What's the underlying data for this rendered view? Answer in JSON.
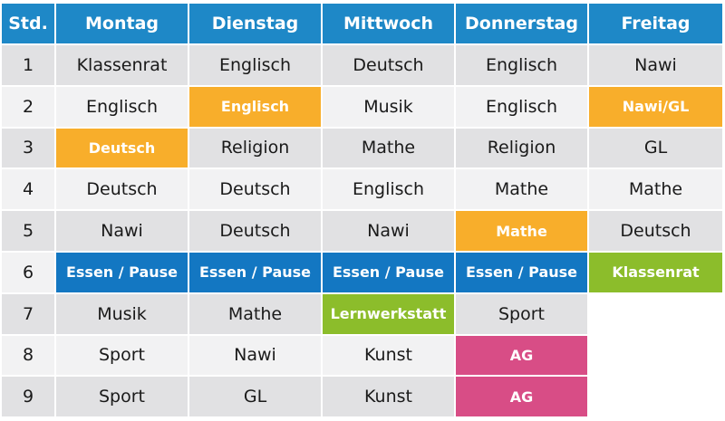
{
  "headers": [
    "Std.",
    "Montag",
    "Dienstag",
    "Mittwoch",
    "Donnerstag",
    "Freitag"
  ],
  "rows": [
    {
      "num": "1",
      "cells": [
        {
          "text": "Klassenrat",
          "hl": ""
        },
        {
          "text": "Englisch",
          "hl": ""
        },
        {
          "text": "Deutsch",
          "hl": ""
        },
        {
          "text": "Englisch",
          "hl": ""
        },
        {
          "text": "Nawi",
          "hl": ""
        }
      ]
    },
    {
      "num": "2",
      "cells": [
        {
          "text": "Englisch",
          "hl": ""
        },
        {
          "text": "Englisch",
          "hl": "orange"
        },
        {
          "text": "Musik",
          "hl": ""
        },
        {
          "text": "Englisch",
          "hl": ""
        },
        {
          "text": "Nawi/GL",
          "hl": "orange"
        }
      ]
    },
    {
      "num": "3",
      "cells": [
        {
          "text": "Deutsch",
          "hl": "orange"
        },
        {
          "text": "Religion",
          "hl": ""
        },
        {
          "text": "Mathe",
          "hl": ""
        },
        {
          "text": "Religion",
          "hl": ""
        },
        {
          "text": "GL",
          "hl": ""
        }
      ]
    },
    {
      "num": "4",
      "cells": [
        {
          "text": "Deutsch",
          "hl": ""
        },
        {
          "text": "Deutsch",
          "hl": ""
        },
        {
          "text": "Englisch",
          "hl": ""
        },
        {
          "text": "Mathe",
          "hl": ""
        },
        {
          "text": "Mathe",
          "hl": ""
        }
      ]
    },
    {
      "num": "5",
      "cells": [
        {
          "text": "Nawi",
          "hl": ""
        },
        {
          "text": "Deutsch",
          "hl": ""
        },
        {
          "text": "Nawi",
          "hl": ""
        },
        {
          "text": "Mathe",
          "hl": "orange"
        },
        {
          "text": "Deutsch",
          "hl": ""
        }
      ]
    },
    {
      "num": "6",
      "cells": [
        {
          "text": "Essen / Pause",
          "hl": "blue"
        },
        {
          "text": "Essen / Pause",
          "hl": "blue"
        },
        {
          "text": "Essen / Pause",
          "hl": "blue"
        },
        {
          "text": "Essen / Pause",
          "hl": "blue"
        },
        {
          "text": "Klassenrat",
          "hl": "green"
        }
      ]
    },
    {
      "num": "7",
      "cells": [
        {
          "text": "Musik",
          "hl": ""
        },
        {
          "text": "Mathe",
          "hl": ""
        },
        {
          "text": "Lernwerkstatt",
          "hl": "green"
        },
        {
          "text": "Sport",
          "hl": ""
        },
        {
          "text": "",
          "hl": "blank"
        }
      ]
    },
    {
      "num": "8",
      "cells": [
        {
          "text": "Sport",
          "hl": ""
        },
        {
          "text": "Nawi",
          "hl": ""
        },
        {
          "text": "Kunst",
          "hl": ""
        },
        {
          "text": "AG",
          "hl": "pink"
        },
        {
          "text": "",
          "hl": "blank"
        }
      ]
    },
    {
      "num": "9",
      "cells": [
        {
          "text": "Sport",
          "hl": ""
        },
        {
          "text": "GL",
          "hl": ""
        },
        {
          "text": "Kunst",
          "hl": ""
        },
        {
          "text": "AG",
          "hl": "pink"
        },
        {
          "text": "",
          "hl": "blank"
        }
      ]
    }
  ],
  "colors": {
    "header": "#1e88c7",
    "orange": "#f8ae2b",
    "blue": "#1377c2",
    "green": "#8cbd2b",
    "pink": "#d84d86",
    "row_odd": "#e1e1e3",
    "row_even": "#f2f2f3"
  }
}
